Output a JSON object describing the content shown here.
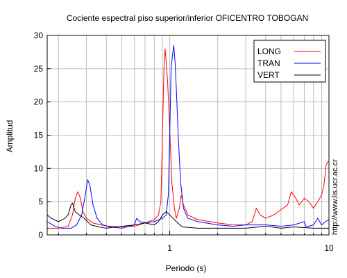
{
  "chart_data": {
    "type": "line",
    "title": "Cociente espectral piso superior/inferior OFICENTRO TOBOGAN",
    "xlabel": "Periodo (s)",
    "ylabel": "Amplitud",
    "x_scale": "log",
    "xlim": [
      0.17,
      10
    ],
    "ylim": [
      0,
      30
    ],
    "x_ticks": [
      1,
      10
    ],
    "x_tick_labels": [
      "1",
      "10"
    ],
    "y_ticks": [
      0,
      5,
      10,
      15,
      20,
      25,
      30
    ],
    "y_tick_labels": [
      "0",
      "5",
      "10",
      "15",
      "20",
      "25",
      "30"
    ],
    "grid": true,
    "legend_position": "top-right",
    "series": [
      {
        "name": "LONG",
        "color": "#ff0000",
        "points": [
          [
            0.17,
            1.0
          ],
          [
            0.2,
            1.0
          ],
          [
            0.23,
            1.3
          ],
          [
            0.245,
            3.0
          ],
          [
            0.255,
            5.5
          ],
          [
            0.265,
            6.5
          ],
          [
            0.275,
            5.5
          ],
          [
            0.285,
            3.5
          ],
          [
            0.3,
            2.5
          ],
          [
            0.33,
            1.8
          ],
          [
            0.37,
            1.5
          ],
          [
            0.42,
            1.3
          ],
          [
            0.5,
            1.2
          ],
          [
            0.6,
            1.3
          ],
          [
            0.7,
            1.8
          ],
          [
            0.8,
            2.3
          ],
          [
            0.85,
            3.0
          ],
          [
            0.88,
            5.0
          ],
          [
            0.9,
            15.0
          ],
          [
            0.92,
            25.0
          ],
          [
            0.935,
            28.0
          ],
          [
            0.95,
            26.0
          ],
          [
            0.97,
            23.0
          ],
          [
            1.0,
            16.0
          ],
          [
            1.03,
            8.0
          ],
          [
            1.07,
            4.0
          ],
          [
            1.1,
            2.5
          ],
          [
            1.15,
            4.0
          ],
          [
            1.18,
            6.0
          ],
          [
            1.22,
            4.5
          ],
          [
            1.3,
            3.0
          ],
          [
            1.5,
            2.3
          ],
          [
            2.0,
            1.8
          ],
          [
            2.5,
            1.5
          ],
          [
            3.0,
            1.5
          ],
          [
            3.3,
            2.0
          ],
          [
            3.5,
            4.0
          ],
          [
            3.7,
            3.0
          ],
          [
            4.0,
            2.5
          ],
          [
            4.5,
            3.0
          ],
          [
            5.0,
            3.8
          ],
          [
            5.5,
            4.5
          ],
          [
            5.8,
            6.5
          ],
          [
            6.2,
            5.5
          ],
          [
            6.5,
            4.5
          ],
          [
            7.0,
            5.5
          ],
          [
            7.5,
            5.0
          ],
          [
            8.0,
            4.0
          ],
          [
            8.5,
            5.0
          ],
          [
            9.0,
            6.0
          ],
          [
            9.3,
            7.5
          ],
          [
            9.6,
            10.5
          ],
          [
            9.8,
            11.0
          ],
          [
            10.0,
            11.0
          ]
        ]
      },
      {
        "name": "TRAN",
        "color": "#0000ff",
        "points": [
          [
            0.17,
            2.0
          ],
          [
            0.19,
            1.3
          ],
          [
            0.21,
            1.0
          ],
          [
            0.24,
            1.0
          ],
          [
            0.26,
            1.5
          ],
          [
            0.28,
            3.0
          ],
          [
            0.295,
            6.0
          ],
          [
            0.305,
            8.3
          ],
          [
            0.315,
            7.5
          ],
          [
            0.33,
            4.5
          ],
          [
            0.35,
            2.5
          ],
          [
            0.38,
            1.5
          ],
          [
            0.42,
            1.2
          ],
          [
            0.5,
            1.0
          ],
          [
            0.6,
            1.5
          ],
          [
            0.62,
            2.5
          ],
          [
            0.65,
            2.0
          ],
          [
            0.7,
            1.8
          ],
          [
            0.8,
            2.0
          ],
          [
            0.9,
            2.5
          ],
          [
            0.95,
            3.0
          ],
          [
            0.98,
            6.0
          ],
          [
            1.0,
            15.0
          ],
          [
            1.02,
            25.0
          ],
          [
            1.04,
            27.0
          ],
          [
            1.06,
            28.5
          ],
          [
            1.08,
            26.0
          ],
          [
            1.1,
            22.0
          ],
          [
            1.13,
            15.0
          ],
          [
            1.17,
            8.0
          ],
          [
            1.22,
            4.0
          ],
          [
            1.3,
            2.5
          ],
          [
            1.5,
            2.0
          ],
          [
            2.0,
            1.5
          ],
          [
            2.5,
            1.3
          ],
          [
            3.0,
            1.5
          ],
          [
            4.0,
            1.5
          ],
          [
            5.0,
            1.3
          ],
          [
            6.0,
            1.5
          ],
          [
            7.0,
            2.0
          ],
          [
            7.2,
            1.2
          ],
          [
            8.0,
            1.5
          ],
          [
            8.5,
            2.5
          ],
          [
            9.0,
            1.5
          ],
          [
            9.5,
            2.0
          ],
          [
            10.0,
            2.3
          ]
        ]
      },
      {
        "name": "VERT",
        "color": "#000000",
        "points": [
          [
            0.17,
            3.0
          ],
          [
            0.18,
            2.5
          ],
          [
            0.2,
            2.0
          ],
          [
            0.22,
            2.5
          ],
          [
            0.23,
            3.0
          ],
          [
            0.24,
            4.5
          ],
          [
            0.245,
            4.8
          ],
          [
            0.255,
            3.5
          ],
          [
            0.27,
            3.0
          ],
          [
            0.29,
            2.5
          ],
          [
            0.32,
            1.5
          ],
          [
            0.36,
            1.2
          ],
          [
            0.4,
            1.0
          ],
          [
            0.5,
            1.3
          ],
          [
            0.6,
            1.5
          ],
          [
            0.7,
            1.8
          ],
          [
            0.8,
            1.5
          ],
          [
            0.85,
            2.0
          ],
          [
            0.9,
            3.0
          ],
          [
            0.95,
            3.5
          ],
          [
            1.0,
            3.0
          ],
          [
            1.1,
            2.0
          ],
          [
            1.2,
            1.2
          ],
          [
            1.5,
            1.0
          ],
          [
            2.0,
            1.0
          ],
          [
            3.0,
            1.0
          ],
          [
            4.0,
            1.3
          ],
          [
            5.0,
            1.0
          ],
          [
            6.0,
            1.2
          ],
          [
            8.0,
            1.0
          ],
          [
            10.0,
            1.0
          ]
        ]
      }
    ],
    "side_annotation": "http://www.lis.ucr.ac.cr"
  }
}
